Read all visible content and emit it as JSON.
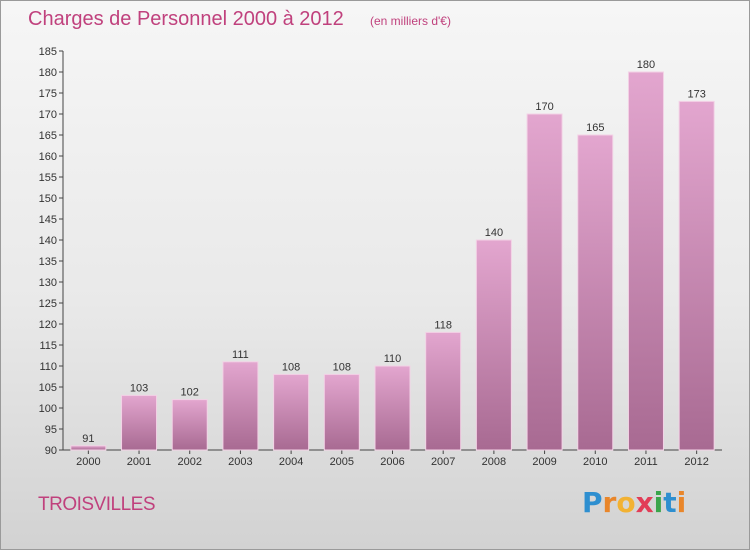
{
  "title": "Charges de Personnel 2000 à 2012",
  "subtitle": "(en milliers d'€)",
  "commune": "TROISVILLES",
  "logo": {
    "letters": [
      "P",
      "r",
      "o",
      "x",
      "i",
      "t",
      "i"
    ],
    "colors": [
      "#2e8fd0",
      "#e9862a",
      "#f2b233",
      "#e23d57",
      "#3aa54a",
      "#2e8fd0",
      "#e9862a"
    ]
  },
  "colors": {
    "bar": "#d884b8",
    "bar_dark": "#a86a92",
    "title": "#c0417d"
  },
  "chart_data": {
    "type": "bar",
    "categories": [
      "2000",
      "2001",
      "2002",
      "2003",
      "2004",
      "2005",
      "2006",
      "2007",
      "2008",
      "2009",
      "2010",
      "2011",
      "2012"
    ],
    "values": [
      91,
      103,
      102,
      111,
      108,
      108,
      110,
      118,
      140,
      170,
      165,
      180,
      173
    ],
    "ylim": [
      90,
      185
    ],
    "ytick_step": 5,
    "grid": false,
    "xlabel": "",
    "ylabel": ""
  }
}
